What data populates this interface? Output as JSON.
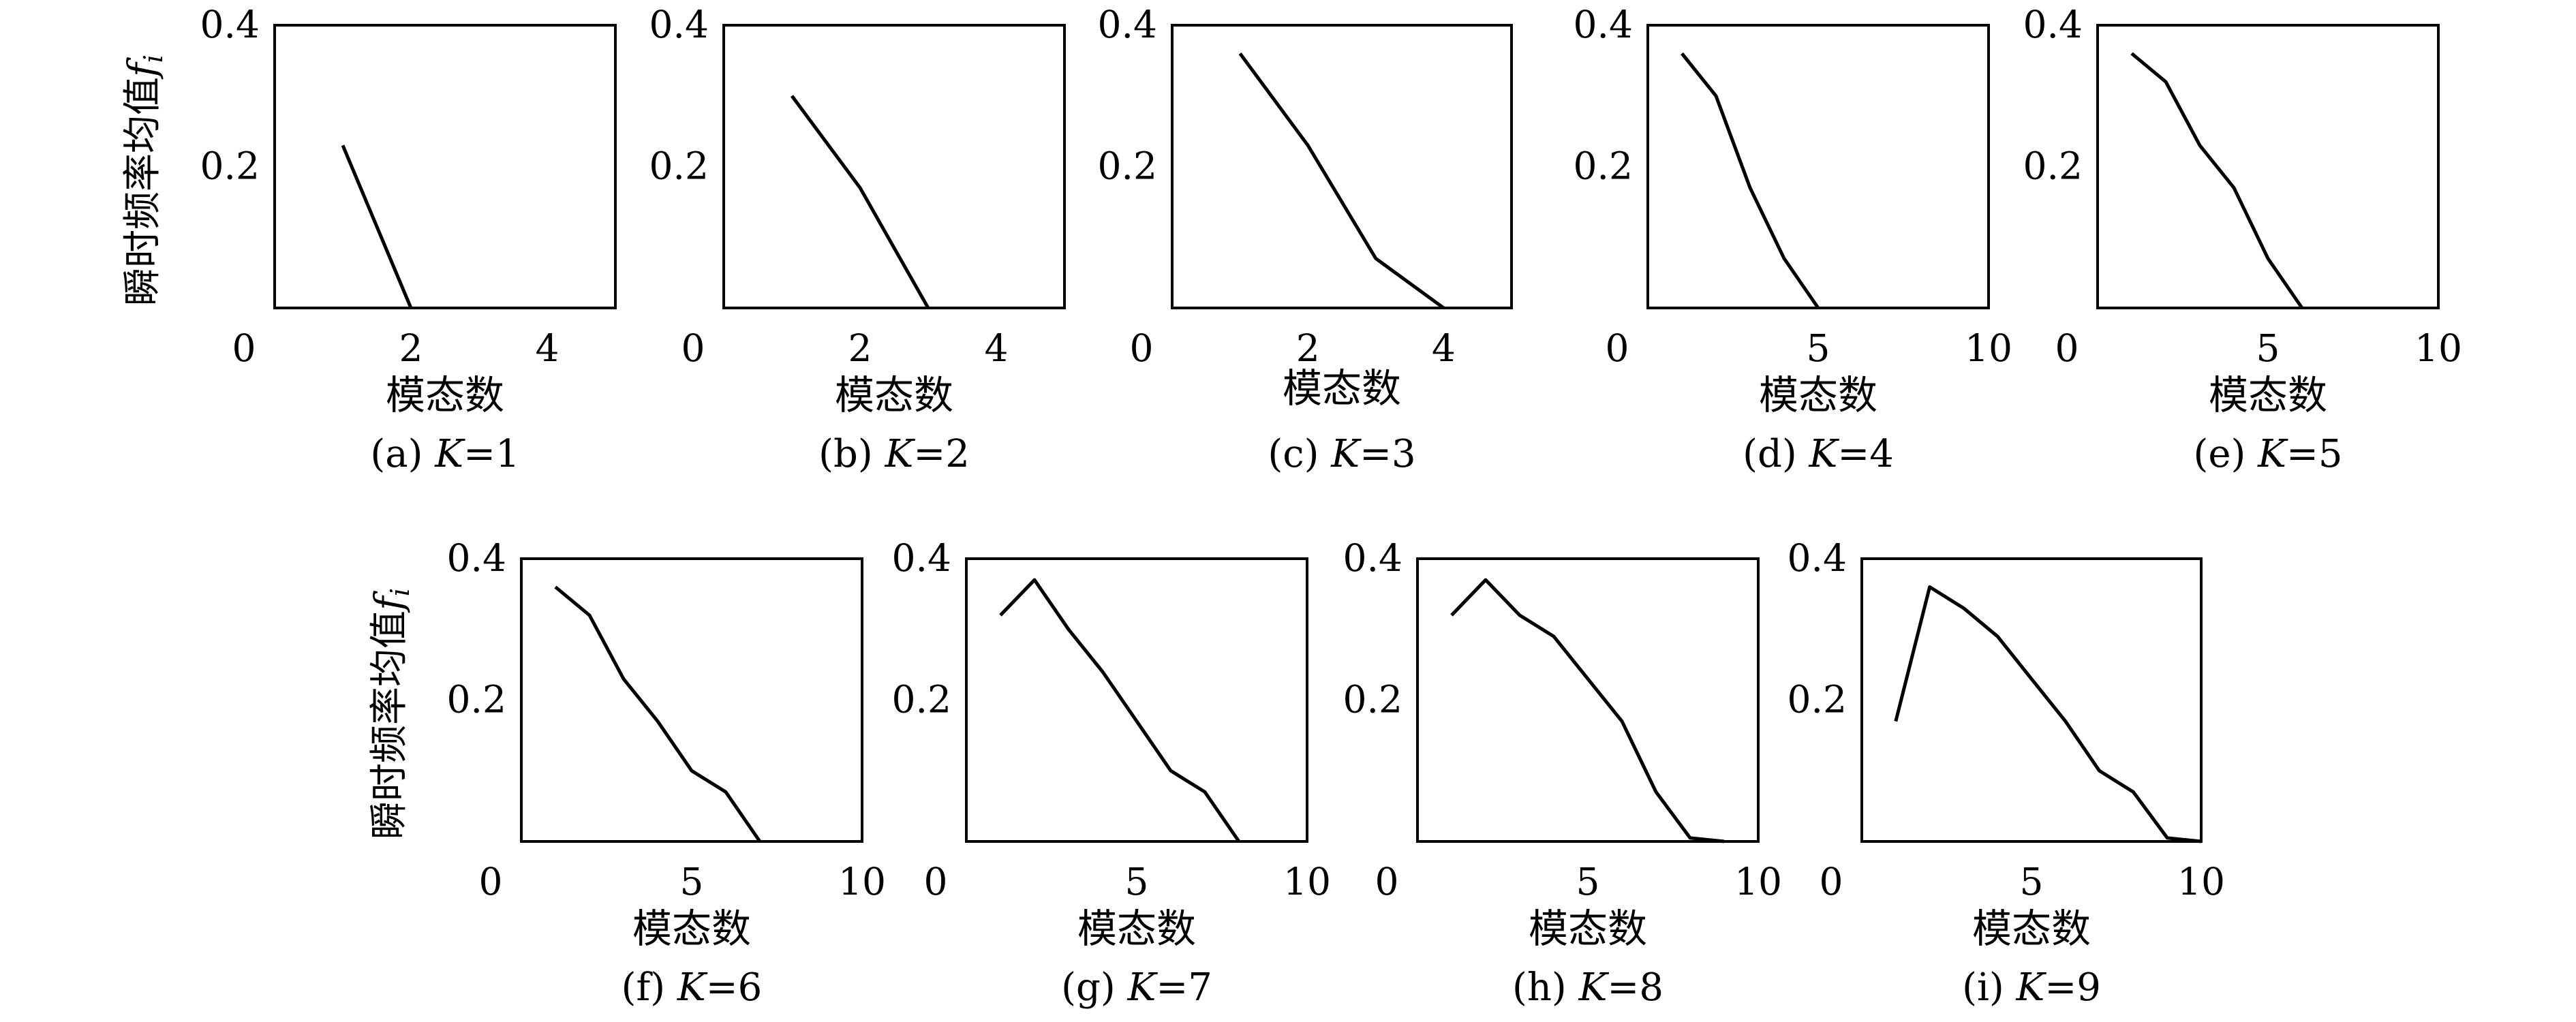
{
  "chart_data": [
    {
      "type": "line",
      "panel_label": "(a)",
      "k_label": "K",
      "k_value": "=1",
      "xlabel": "模态数",
      "ylabel": "瞬时频率均值",
      "ylabel_symbol": "f",
      "ylabel_subscript": "i",
      "xlim": [
        0,
        5
      ],
      "ylim": [
        0,
        0.4
      ],
      "xticks": [
        0,
        2,
        4
      ],
      "yticks": [
        0.2,
        0.4
      ],
      "x": [
        1,
        2
      ],
      "y": [
        0.23,
        0
      ]
    },
    {
      "type": "line",
      "panel_label": "(b)",
      "k_label": "K",
      "k_value": "=2",
      "xlabel": "模态数",
      "ylabel": "",
      "xlim": [
        0,
        5
      ],
      "ylim": [
        0,
        0.4
      ],
      "xticks": [
        0,
        2,
        4
      ],
      "yticks": [
        0.2,
        0.4
      ],
      "x": [
        1,
        2,
        3
      ],
      "y": [
        0.3,
        0.17,
        0
      ]
    },
    {
      "type": "line",
      "panel_label": "(c)",
      "k_label": "K",
      "k_value": "=3",
      "xlabel": "模态数",
      "ylabel": "",
      "xlim": [
        0,
        5
      ],
      "ylim": [
        0,
        0.4
      ],
      "xticks": [
        0,
        2,
        4
      ],
      "yticks": [
        0.2,
        0.4
      ],
      "x": [
        1,
        2,
        3,
        4
      ],
      "y": [
        0.36,
        0.23,
        0.07,
        0
      ]
    },
    {
      "type": "line",
      "panel_label": "(d)",
      "k_label": "K",
      "k_value": "=4",
      "xlabel": "模态数",
      "ylabel": "",
      "xlim": [
        0,
        10
      ],
      "ylim": [
        0,
        0.4
      ],
      "xticks": [
        0,
        5,
        10
      ],
      "yticks": [
        0.2,
        0.4
      ],
      "x": [
        1,
        2,
        3,
        4,
        5
      ],
      "y": [
        0.36,
        0.3,
        0.17,
        0.07,
        0
      ]
    },
    {
      "type": "line",
      "panel_label": "(e)",
      "k_label": "K",
      "k_value": "=5",
      "xlabel": "模态数",
      "ylabel": "",
      "xlim": [
        0,
        10
      ],
      "ylim": [
        0,
        0.4
      ],
      "xticks": [
        0,
        5,
        10
      ],
      "yticks": [
        0.2,
        0.4
      ],
      "x": [
        1,
        2,
        3,
        4,
        5,
        6
      ],
      "y": [
        0.36,
        0.32,
        0.23,
        0.17,
        0.07,
        0
      ]
    },
    {
      "type": "line",
      "panel_label": "(f)",
      "k_label": "K",
      "k_value": "=6",
      "xlabel": "模态数",
      "ylabel": "瞬时频率均值",
      "ylabel_symbol": "f",
      "ylabel_subscript": "i",
      "xlim": [
        0,
        10
      ],
      "ylim": [
        0,
        0.4
      ],
      "xticks": [
        0,
        5,
        10
      ],
      "yticks": [
        0.2,
        0.4
      ],
      "x": [
        1,
        2,
        3,
        4,
        5,
        6,
        7
      ],
      "y": [
        0.36,
        0.32,
        0.23,
        0.17,
        0.1,
        0.07,
        0
      ]
    },
    {
      "type": "line",
      "panel_label": "(g)",
      "k_label": "K",
      "k_value": "=7",
      "xlabel": "模态数",
      "ylabel": "",
      "xlim": [
        0,
        10
      ],
      "ylim": [
        0,
        0.4
      ],
      "xticks": [
        0,
        5,
        10
      ],
      "yticks": [
        0.2,
        0.4
      ],
      "x": [
        1,
        2,
        3,
        4,
        5,
        6,
        7,
        8
      ],
      "y": [
        0.32,
        0.37,
        0.3,
        0.24,
        0.17,
        0.1,
        0.07,
        0
      ]
    },
    {
      "type": "line",
      "panel_label": "(h)",
      "k_label": "K",
      "k_value": "=8",
      "xlabel": "模态数",
      "ylabel": "",
      "xlim": [
        0,
        10
      ],
      "ylim": [
        0,
        0.4
      ],
      "xticks": [
        0,
        5,
        10
      ],
      "yticks": [
        0.2,
        0.4
      ],
      "x": [
        1,
        2,
        3,
        4,
        5,
        6,
        7,
        8,
        9
      ],
      "y": [
        0.32,
        0.37,
        0.32,
        0.29,
        0.23,
        0.17,
        0.07,
        0.005,
        0
      ]
    },
    {
      "type": "line",
      "panel_label": "(i)",
      "k_label": "K",
      "k_value": "=9",
      "xlabel": "模态数",
      "ylabel": "",
      "xlim": [
        0,
        10
      ],
      "ylim": [
        0,
        0.4
      ],
      "xticks": [
        0,
        5,
        10
      ],
      "yticks": [
        0.2,
        0.4
      ],
      "x": [
        1,
        2,
        3,
        4,
        5,
        6,
        7,
        8,
        9,
        10
      ],
      "y": [
        0.17,
        0.36,
        0.33,
        0.29,
        0.23,
        0.17,
        0.1,
        0.07,
        0.005,
        0
      ]
    }
  ]
}
